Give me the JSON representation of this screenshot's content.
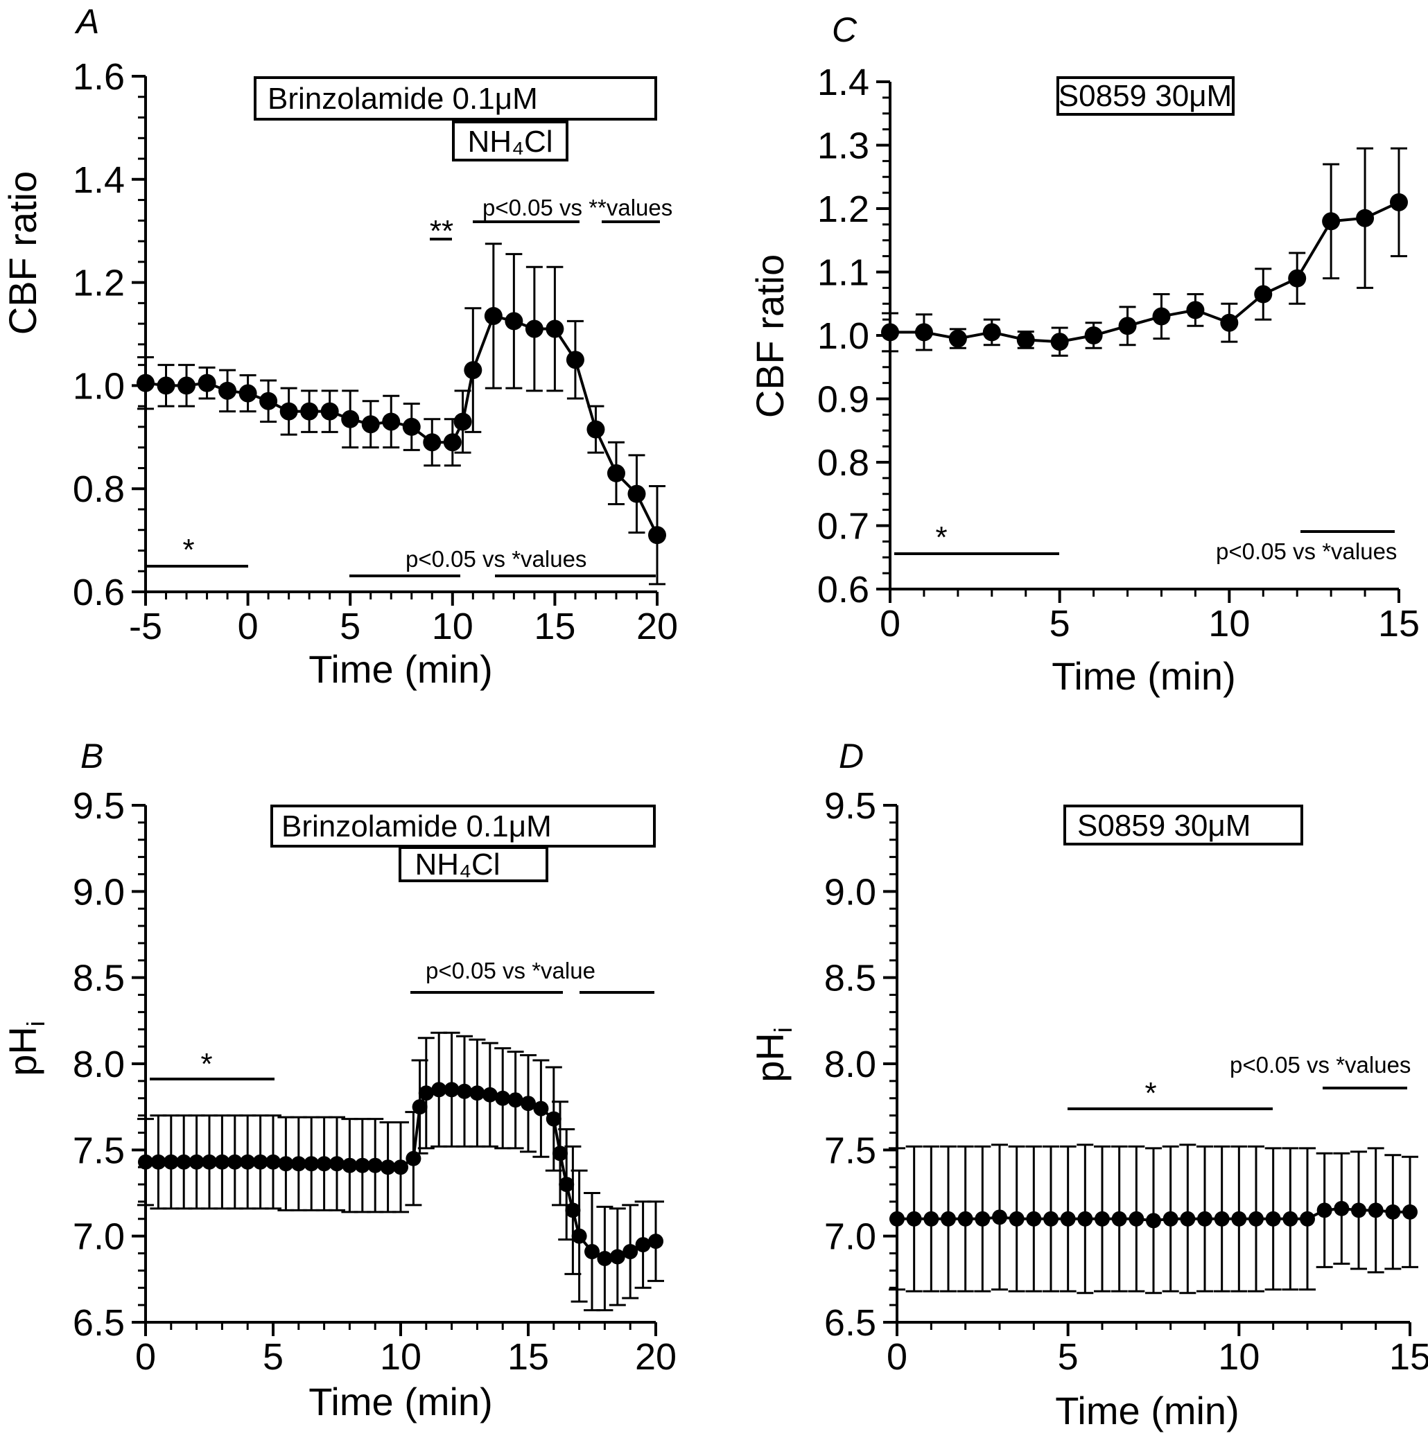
{
  "chart_data": [
    {
      "panel": "A",
      "type": "line",
      "xlabel": "Time (min)",
      "ylabel": "CBF ratio",
      "xlim": [
        -5,
        20
      ],
      "ylim": [
        0.6,
        1.6
      ],
      "xticks": [
        "-5",
        "0",
        "5",
        "10",
        "15",
        "20"
      ],
      "yticks": [
        "0.6",
        "0.8",
        "1.0",
        "1.2",
        "1.4",
        "1.6"
      ],
      "boxes": [
        "Brinzolamide 0.1μM",
        "NH₄Cl"
      ],
      "annotations": [
        "*",
        "**",
        "p<0.05 vs **values",
        "p<0.05 vs *values"
      ],
      "series": [
        {
          "x": [
            -5,
            -4,
            -3,
            -2,
            -1,
            0,
            1,
            2,
            3,
            4,
            5,
            6,
            7,
            8,
            9,
            10,
            10.5,
            11,
            12,
            13,
            14,
            15,
            16,
            17,
            18,
            19,
            20
          ],
          "values": [
            1.005,
            1.0,
            1.0,
            1.005,
            0.99,
            0.985,
            0.97,
            0.95,
            0.95,
            0.95,
            0.935,
            0.925,
            0.93,
            0.92,
            0.89,
            0.89,
            0.93,
            1.03,
            1.135,
            1.125,
            1.11,
            1.11,
            1.05,
            0.915,
            0.83,
            0.79,
            0.71
          ],
          "err": [
            0.05,
            0.04,
            0.04,
            0.03,
            0.04,
            0.035,
            0.04,
            0.045,
            0.04,
            0.04,
            0.055,
            0.045,
            0.05,
            0.045,
            0.045,
            0.045,
            0.06,
            0.12,
            0.14,
            0.13,
            0.12,
            0.12,
            0.075,
            0.045,
            0.06,
            0.075,
            0.095
          ]
        }
      ]
    },
    {
      "panel": "C",
      "type": "line",
      "xlabel": "Time (min)",
      "ylabel": "CBF ratio",
      "xlim": [
        0,
        15
      ],
      "ylim": [
        0.6,
        1.4
      ],
      "xticks": [
        "0",
        "5",
        "10",
        "15"
      ],
      "yticks": [
        "0.6",
        "0.7",
        "0.8",
        "0.9",
        "1.0",
        "1.1",
        "1.2",
        "1.3",
        "1.4"
      ],
      "boxes": [
        "S0859 30μM"
      ],
      "annotations": [
        "*",
        "p<0.05 vs *values"
      ],
      "series": [
        {
          "x": [
            0,
            1,
            2,
            3,
            4,
            5,
            6,
            7,
            8,
            9,
            10,
            11,
            12,
            13,
            14,
            15
          ],
          "values": [
            1.005,
            1.005,
            0.995,
            1.005,
            0.993,
            0.99,
            1.0,
            1.015,
            1.03,
            1.04,
            1.02,
            1.065,
            1.09,
            1.18,
            1.185,
            1.21
          ],
          "err": [
            0.03,
            0.028,
            0.015,
            0.02,
            0.013,
            0.022,
            0.02,
            0.03,
            0.035,
            0.025,
            0.03,
            0.04,
            0.04,
            0.09,
            0.11,
            0.085
          ]
        }
      ]
    },
    {
      "panel": "B",
      "type": "line",
      "xlabel": "Time (min)",
      "ylabel": "pH",
      "ylabel_sub": "i",
      "xlim": [
        0,
        20
      ],
      "ylim": [
        6.5,
        9.5
      ],
      "xticks": [
        "0",
        "5",
        "10",
        "15",
        "20"
      ],
      "yticks": [
        "6.5",
        "7.0",
        "7.5",
        "8.0",
        "8.5",
        "9.0",
        "9.5"
      ],
      "boxes": [
        "Brinzolamide 0.1μM",
        "NH₄Cl"
      ],
      "annotations": [
        "*",
        "p<0.05 vs *value"
      ],
      "series": [
        {
          "x": [
            0,
            0.5,
            1,
            1.5,
            2,
            2.5,
            3,
            3.5,
            4,
            4.5,
            5,
            5.5,
            6,
            6.5,
            7,
            7.5,
            8,
            8.5,
            9,
            9.5,
            10,
            10.5,
            10.75,
            11,
            11.5,
            12,
            12.5,
            13,
            13.5,
            14,
            14.5,
            15,
            15.5,
            16,
            16.25,
            16.5,
            16.75,
            17,
            17.5,
            18,
            18.5,
            19,
            19.5,
            20
          ],
          "values": [
            7.43,
            7.43,
            7.43,
            7.43,
            7.43,
            7.43,
            7.43,
            7.43,
            7.43,
            7.43,
            7.43,
            7.42,
            7.42,
            7.42,
            7.42,
            7.42,
            7.41,
            7.41,
            7.41,
            7.4,
            7.4,
            7.45,
            7.75,
            7.83,
            7.85,
            7.85,
            7.84,
            7.83,
            7.82,
            7.8,
            7.79,
            7.77,
            7.74,
            7.68,
            7.48,
            7.3,
            7.15,
            7.0,
            6.91,
            6.87,
            6.88,
            6.91,
            6.95,
            6.97
          ],
          "err": [
            0.25,
            0.27,
            0.27,
            0.27,
            0.27,
            0.27,
            0.27,
            0.27,
            0.27,
            0.27,
            0.27,
            0.27,
            0.27,
            0.27,
            0.27,
            0.27,
            0.27,
            0.27,
            0.27,
            0.26,
            0.26,
            0.27,
            0.27,
            0.32,
            0.33,
            0.33,
            0.32,
            0.31,
            0.3,
            0.29,
            0.28,
            0.28,
            0.28,
            0.3,
            0.3,
            0.32,
            0.37,
            0.38,
            0.34,
            0.3,
            0.28,
            0.27,
            0.25,
            0.23
          ]
        }
      ]
    },
    {
      "panel": "D",
      "type": "line",
      "xlabel": "Time (min)",
      "ylabel": "pH",
      "ylabel_sub": "i",
      "xlim": [
        0,
        15
      ],
      "ylim": [
        6.5,
        9.5
      ],
      "xticks": [
        "0",
        "5",
        "10",
        "15"
      ],
      "yticks": [
        "6.5",
        "7.0",
        "7.5",
        "8.0",
        "8.5",
        "9.0",
        "9.5"
      ],
      "boxes": [
        "S0859 30μM"
      ],
      "annotations": [
        "*",
        "p<0.05 vs *values"
      ],
      "series": [
        {
          "x": [
            0,
            0.5,
            1,
            1.5,
            2,
            2.5,
            3,
            3.5,
            4,
            4.5,
            5,
            5.5,
            6,
            6.5,
            7,
            7.5,
            8,
            8.5,
            9,
            9.5,
            10,
            10.5,
            11,
            11.5,
            12,
            12.5,
            13,
            13.5,
            14,
            14.5,
            15
          ],
          "values": [
            7.1,
            7.1,
            7.1,
            7.1,
            7.1,
            7.1,
            7.11,
            7.1,
            7.1,
            7.1,
            7.1,
            7.1,
            7.1,
            7.1,
            7.1,
            7.09,
            7.1,
            7.1,
            7.1,
            7.1,
            7.1,
            7.1,
            7.1,
            7.1,
            7.1,
            7.15,
            7.16,
            7.15,
            7.15,
            7.14,
            7.14
          ],
          "err": [
            0.41,
            0.42,
            0.42,
            0.42,
            0.42,
            0.42,
            0.42,
            0.42,
            0.42,
            0.42,
            0.42,
            0.43,
            0.42,
            0.42,
            0.42,
            0.42,
            0.42,
            0.43,
            0.42,
            0.42,
            0.42,
            0.42,
            0.41,
            0.41,
            0.41,
            0.33,
            0.32,
            0.34,
            0.36,
            0.33,
            0.32
          ]
        }
      ]
    }
  ]
}
